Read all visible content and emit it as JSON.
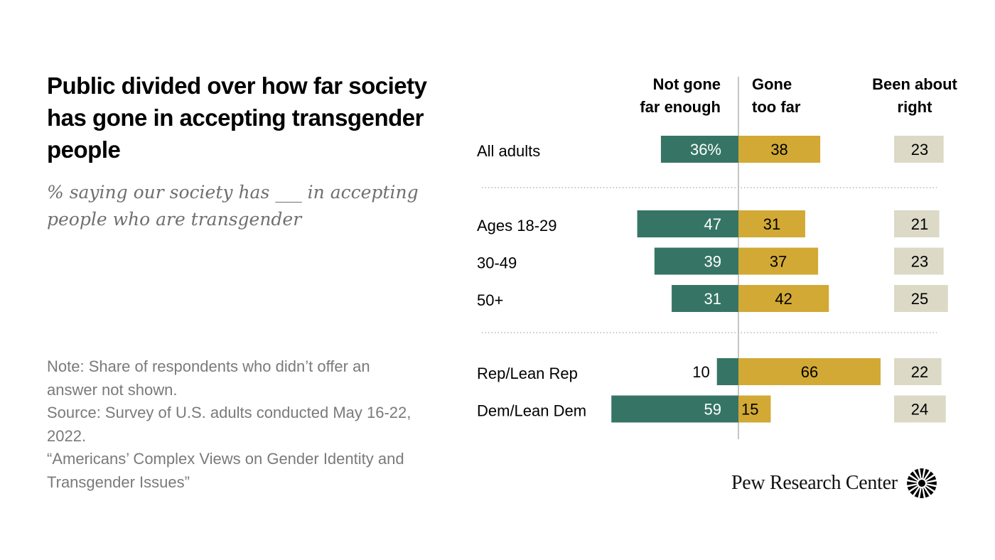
{
  "title": "Public divided over how far society has gone in accepting transgender people",
  "subtitle": "% saying our society has ___ in accepting people who are transgender",
  "notes": [
    "Note: Share of respondents who didn’t offer an answer not shown.",
    "Source: Survey of U.S. adults conducted May 16-22, 2022.",
    "“Americans’ Complex Views on Gender Identity and Transgender Issues”"
  ],
  "branding": {
    "name": "Pew Research Center",
    "icon": "pew-sunburst-icon"
  },
  "colors": {
    "not_far_enough": "#367565",
    "too_far": "#d2a935",
    "about_right": "#dcd9c7",
    "center_line": "#b3b3b3",
    "divider": "#9a9a9a"
  },
  "chart_data": {
    "type": "bar",
    "orientation": "horizontal-diverging",
    "title": "Public divided over how far society has gone in accepting transgender people",
    "subtitle": "% saying our society has ___ in accepting people who are transgender",
    "unit": "%",
    "series": [
      {
        "key": "not_far_enough",
        "name": "Not gone far enough",
        "header": [
          "Not gone",
          "far enough"
        ],
        "direction": "left"
      },
      {
        "key": "too_far",
        "name": "Gone too far",
        "header": [
          "Gone",
          "too far"
        ],
        "direction": "right"
      },
      {
        "key": "about_right",
        "name": "Been about right",
        "header": [
          "Been about",
          "right"
        ],
        "direction": "separate"
      }
    ],
    "groups": [
      {
        "rows": [
          {
            "label": "All adults",
            "not_far_enough": 36,
            "too_far": 38,
            "about_right": 23,
            "first_row_suffix": "%"
          }
        ]
      },
      {
        "rows": [
          {
            "label": "Ages 18-29",
            "not_far_enough": 47,
            "too_far": 31,
            "about_right": 21
          },
          {
            "label": "30-49",
            "not_far_enough": 39,
            "too_far": 37,
            "about_right": 23
          },
          {
            "label": "50+",
            "not_far_enough": 31,
            "too_far": 42,
            "about_right": 25
          }
        ]
      },
      {
        "rows": [
          {
            "label": "Rep/Lean Rep",
            "not_far_enough": 10,
            "too_far": 66,
            "about_right": 22
          },
          {
            "label": "Dem/Lean Dem",
            "not_far_enough": 59,
            "too_far": 15,
            "about_right": 24
          }
        ]
      }
    ],
    "xlim": [
      0,
      100
    ],
    "grid": false,
    "legend": "column-headers-top"
  }
}
